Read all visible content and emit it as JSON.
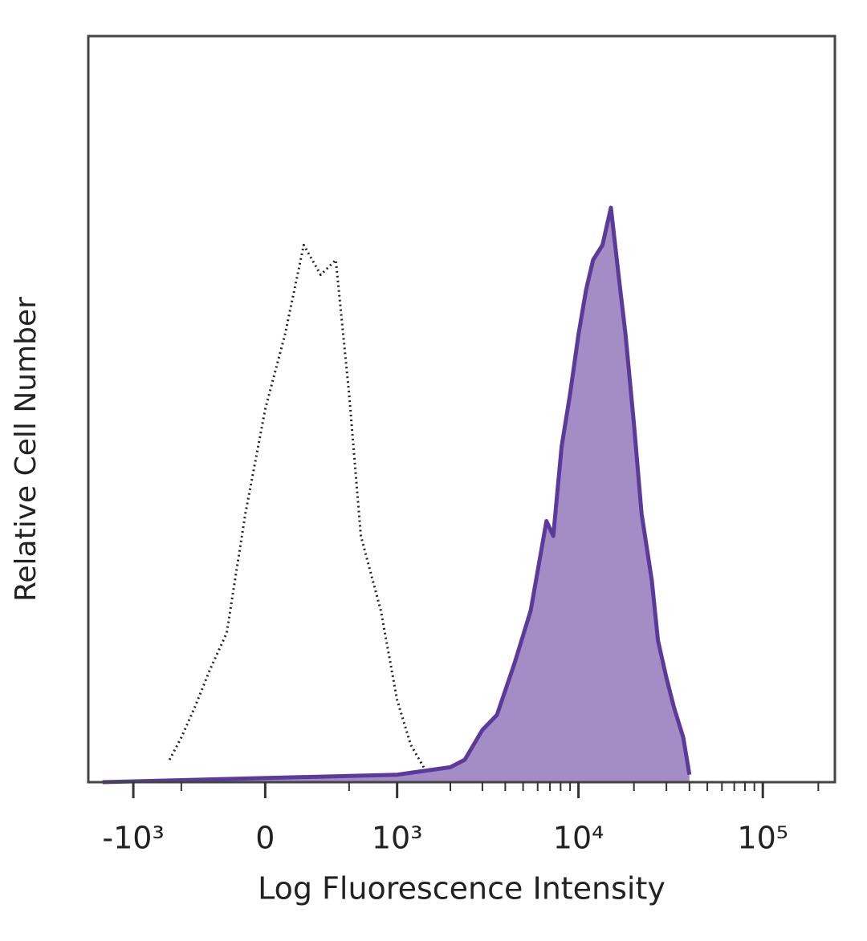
{
  "chart_data": {
    "type": "histogram-overlay",
    "xlabel": "Log Fluorescence Intensity",
    "ylabel": "Relative Cell Number",
    "xscale": "logicle",
    "xlim": [
      -1800,
      246000
    ],
    "ylim": [
      0,
      100
    ],
    "xticks": [
      {
        "value": -1000,
        "label": "-10³"
      },
      0,
      {
        "value": 1000,
        "label": "10³"
      },
      {
        "value": 10000,
        "label": "10⁴"
      },
      {
        "value": 100000,
        "label": "10⁵"
      }
    ],
    "xminorticks": [
      -500,
      500,
      2000,
      3000,
      4000,
      5000,
      6000,
      7000,
      8000,
      9000,
      20000,
      30000,
      40000,
      50000,
      60000,
      70000,
      80000,
      90000,
      200000
    ],
    "series": [
      {
        "color": "#222222",
        "filled": false,
        "dashed": true,
        "x": [
          -600,
          -500,
          -400,
          -300,
          -200,
          -100,
          0,
          100,
          200,
          300,
          400,
          500,
          600,
          800,
          1000,
          1200,
          1500
        ],
        "values": [
          3,
          6,
          10,
          15,
          20,
          36,
          50,
          60,
          72,
          68,
          70,
          52,
          33,
          23,
          11,
          5,
          1
        ]
      },
      {
        "color": "#5b3a9c",
        "fill": "#a48cc4",
        "filled": true,
        "dashed": false,
        "x": [
          -1500,
          1000,
          2000,
          2400,
          3000,
          3600,
          4500,
          5500,
          6700,
          7300,
          8100,
          9000,
          10000,
          11000,
          12000,
          13500,
          15000,
          16500,
          18000,
          20000,
          22000,
          25000,
          27000,
          30000,
          33000,
          37000,
          40000
        ],
        "values": [
          0,
          1,
          2,
          3,
          7,
          9,
          16,
          23,
          35,
          33,
          45,
          52,
          60,
          66,
          70,
          72,
          77,
          68,
          60,
          48,
          36,
          27,
          19,
          14,
          10,
          6,
          1
        ]
      }
    ]
  }
}
